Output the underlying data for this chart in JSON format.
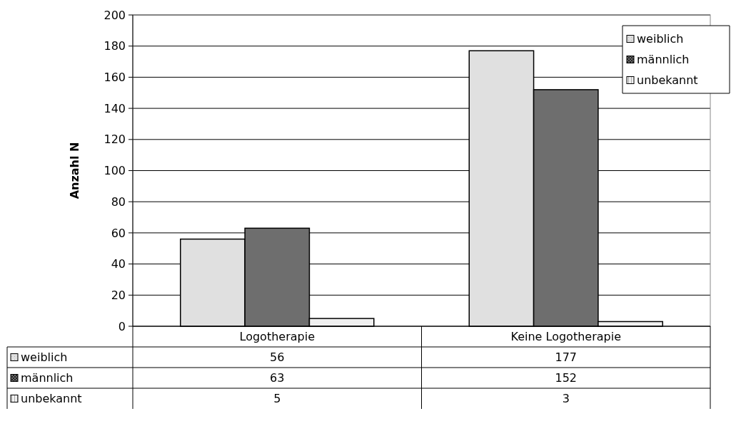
{
  "chart_data": {
    "type": "bar",
    "ylabel": "Anzahl N",
    "categories": [
      "Logotherapie",
      "Keine Logotherapie"
    ],
    "series": [
      {
        "name": "weiblich",
        "color": "#e0e0e0",
        "values": [
          56,
          177
        ]
      },
      {
        "name": "männlich",
        "color": "#6e6e6e",
        "values": [
          63,
          152
        ]
      },
      {
        "name": "unbekannt",
        "color": "#f0f0f0",
        "values": [
          5,
          3
        ]
      }
    ],
    "ylim": [
      0,
      200
    ],
    "yticks": [
      0,
      20,
      40,
      60,
      80,
      100,
      120,
      140,
      160,
      180,
      200
    ],
    "grid": "y",
    "legend": "top right",
    "data_labels": true
  }
}
